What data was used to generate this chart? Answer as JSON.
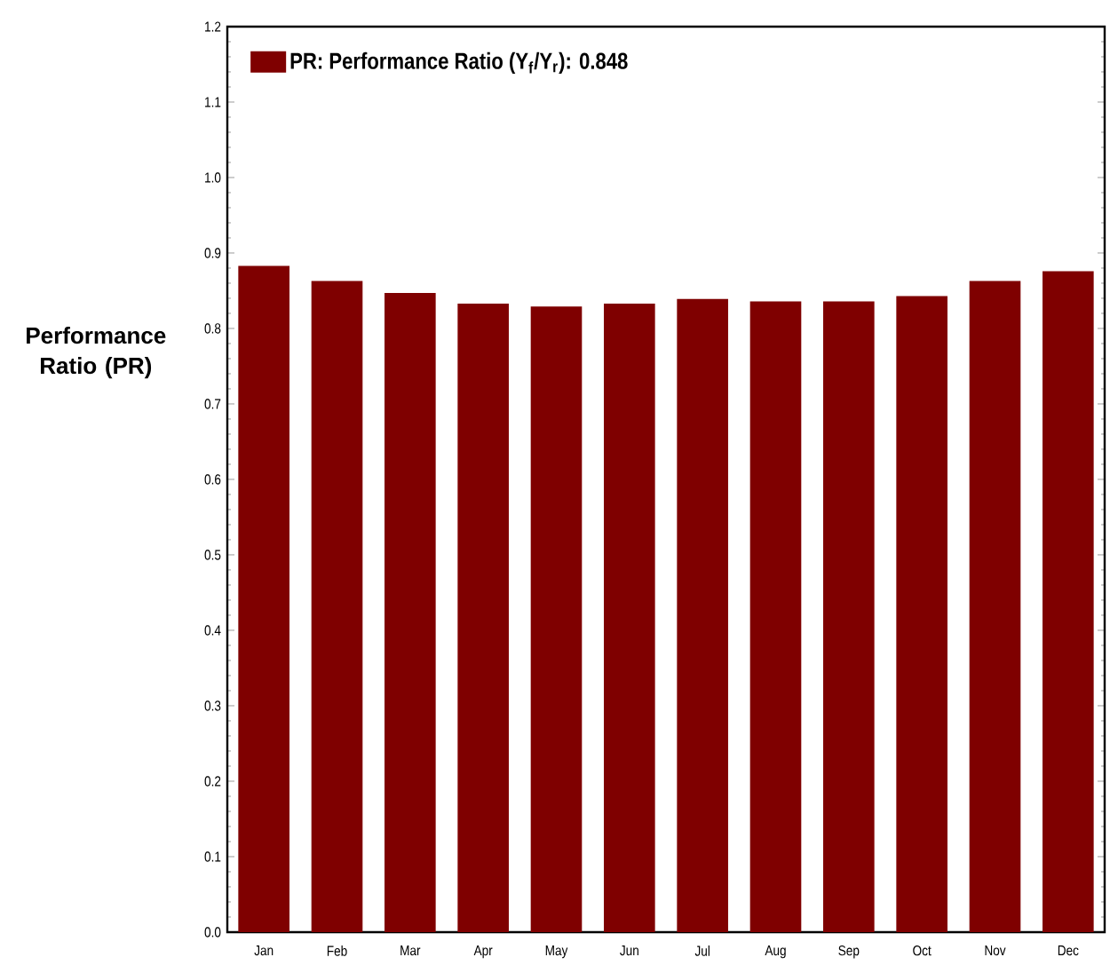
{
  "chart_data": {
    "type": "bar",
    "ylabel": "Performance Ratio (PR)",
    "categories": [
      "Jan",
      "Feb",
      "Mar",
      "Apr",
      "May",
      "Jun",
      "Jul",
      "Aug",
      "Sep",
      "Oct",
      "Nov",
      "Dec"
    ],
    "series": [
      {
        "name": "PR: Performance Ratio (Y$_{f}$/Y$_{r}$): 0.848",
        "color": "#7f0000",
        "values": [
          0.883,
          0.863,
          0.847,
          0.833,
          0.829,
          0.833,
          0.839,
          0.836,
          0.836,
          0.843,
          0.863,
          0.876
        ]
      }
    ],
    "ylim": [
      0,
      1.2
    ],
    "yticks": [
      {
        "value": 0,
        "label": "0.0"
      },
      0.1,
      0.2,
      0.3,
      0.4,
      0.5,
      0.6,
      0.7,
      0.8,
      0.9,
      {
        "value": 1.0,
        "label": "1.0"
      },
      1.1,
      1.2
    ],
    "legend": "top left"
  }
}
